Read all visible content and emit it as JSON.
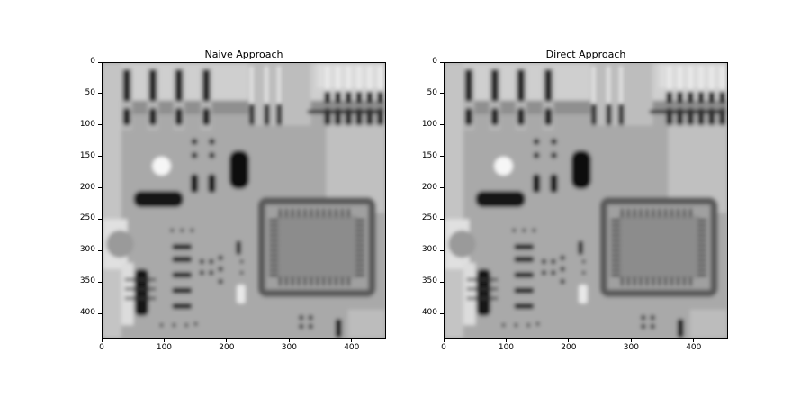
{
  "chart_data": [
    {
      "type": "heatmap",
      "title": "Naive Approach",
      "x_ticks": [
        0,
        100,
        200,
        300,
        400
      ],
      "y_ticks": [
        0,
        50,
        100,
        150,
        200,
        250,
        300,
        350,
        400
      ],
      "xlim": [
        0,
        455
      ],
      "ylim": [
        440,
        0
      ],
      "colormap": "gray",
      "content": "blurred grayscale image of a circuit board"
    },
    {
      "type": "heatmap",
      "title": "Direct Approach",
      "x_ticks": [
        0,
        100,
        200,
        300,
        400
      ],
      "y_ticks": [
        0,
        50,
        100,
        150,
        200,
        250,
        300,
        350,
        400
      ],
      "xlim": [
        0,
        455
      ],
      "ylim": [
        440,
        0
      ],
      "colormap": "gray",
      "content": "blurred grayscale image of a circuit board"
    }
  ]
}
